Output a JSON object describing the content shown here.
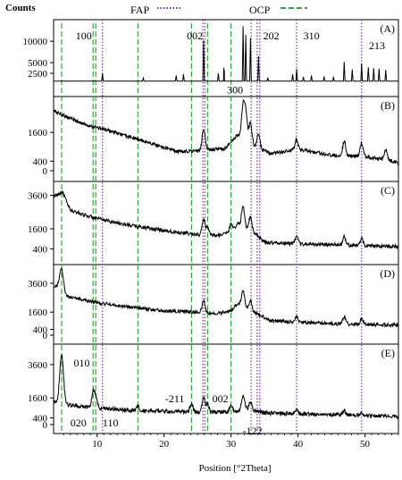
{
  "chart_data": {
    "type": "line",
    "title": "",
    "ylabel": "Counts",
    "xlabel": "Position [°2Theta]",
    "xlim": [
      3.5,
      55
    ],
    "xticks": [
      10,
      20,
      30,
      40,
      50
    ],
    "legend": {
      "placement": "top-center",
      "entries": [
        {
          "label": "FAP",
          "style": "dotted",
          "color": "#7b2fbf"
        },
        {
          "label": "OCP",
          "style": "dashed",
          "color": "#2eaa3a"
        }
      ]
    },
    "reference_lines": {
      "FAP": [
        10.8,
        25.8,
        26.1,
        33.0,
        33.9,
        34.3,
        39.8,
        49.5
      ],
      "OCP": [
        4.7,
        9.4,
        9.8,
        16.1,
        24.1,
        26.5,
        30.0
      ]
    },
    "panels": [
      {
        "label": "(A)",
        "yticks": [
          2500,
          5000,
          10000
        ],
        "ylim": [
          0,
          14000
        ],
        "annotations": [
          {
            "text": "100",
            "x": 8.0,
            "y": 10500
          },
          {
            "text": "002",
            "x": 24.6,
            "y": 10500
          },
          {
            "text": "202",
            "x": 36.0,
            "y": 10500
          },
          {
            "text": "310",
            "x": 42.0,
            "y": 10500
          },
          {
            "text": "213",
            "x": 51.8,
            "y": 8200
          },
          {
            "text": "300",
            "x": 30.6,
            "y": -2200
          }
        ],
        "series": [
          {
            "name": "",
            "color": "#000000",
            "x": [
              10.8,
              16.9,
              21.8,
              22.9,
              25.9,
              28.1,
              28.9,
              29.0,
              31.8,
              32.2,
              32.9,
              34.1,
              35.5,
              39.2,
              39.8,
              40.8,
              42.0,
              43.9,
              45.3,
              46.9,
              48.1,
              49.5,
              50.5,
              51.3,
              52.1,
              53.1
            ],
            "y": [
              2500,
              1400,
              2000,
              2300,
              10200,
              2500,
              3800,
              3000,
              13500,
              11500,
              10800,
              6500,
              1500,
              2300,
              3500,
              1700,
              2000,
              1800,
              1700,
              5200,
              3400,
              4800,
              3900,
              3700,
              3600,
              3300
            ]
          }
        ]
      },
      {
        "label": "(B)",
        "yticks": [
          0,
          400,
          1600
        ],
        "ylim": [
          0,
          2800
        ],
        "baseline": [
          [
            3.5,
            2500
          ],
          [
            8,
            1950
          ],
          [
            12,
            1650
          ],
          [
            18,
            1150
          ],
          [
            22,
            800
          ],
          [
            25,
            820
          ],
          [
            27,
            900
          ],
          [
            29,
            900
          ],
          [
            31,
            1500
          ],
          [
            33,
            1100
          ],
          [
            36,
            700
          ],
          [
            40,
            900
          ],
          [
            45,
            650
          ],
          [
            50,
            600
          ],
          [
            55,
            350
          ]
        ],
        "peaks": [
          [
            25.9,
            900
          ],
          [
            31.8,
            1350
          ],
          [
            32.2,
            1100
          ],
          [
            32.9,
            900
          ],
          [
            34.1,
            550
          ],
          [
            39.8,
            400
          ],
          [
            46.9,
            600
          ],
          [
            49.5,
            550
          ],
          [
            53.1,
            450
          ]
        ]
      },
      {
        "label": "(C)",
        "yticks": [
          400,
          1600,
          3600
        ],
        "ylim": [
          0,
          4000
        ],
        "baseline": [
          [
            3.5,
            3500
          ],
          [
            4.8,
            3850
          ],
          [
            6,
            2700
          ],
          [
            10,
            2200
          ],
          [
            15,
            1800
          ],
          [
            20,
            1500
          ],
          [
            25,
            1250
          ],
          [
            28,
            1200
          ],
          [
            30,
            1400
          ],
          [
            31,
            1900
          ],
          [
            33,
            1500
          ],
          [
            35,
            800
          ],
          [
            40,
            700
          ],
          [
            45,
            650
          ],
          [
            50,
            600
          ],
          [
            55,
            550
          ]
        ],
        "peaks": [
          [
            25.9,
            900
          ],
          [
            26.5,
            500
          ],
          [
            30.0,
            500
          ],
          [
            31.8,
            1200
          ],
          [
            32.9,
            800
          ],
          [
            39.8,
            400
          ],
          [
            46.9,
            500
          ],
          [
            49.5,
            400
          ]
        ]
      },
      {
        "label": "(D)",
        "yticks": [
          0,
          400,
          1600,
          3600
        ],
        "ylim": [
          0,
          4400
        ],
        "baseline": [
          [
            3.5,
            3300
          ],
          [
            4.2,
            3400
          ],
          [
            5.5,
            2700
          ],
          [
            10,
            2250
          ],
          [
            15,
            1950
          ],
          [
            20,
            1700
          ],
          [
            25,
            1600
          ],
          [
            28,
            1500
          ],
          [
            30,
            1700
          ],
          [
            31,
            2200
          ],
          [
            33,
            1700
          ],
          [
            36,
            1000
          ],
          [
            40,
            900
          ],
          [
            45,
            800
          ],
          [
            50,
            750
          ],
          [
            55,
            700
          ]
        ],
        "peaks": [
          [
            4.7,
            1400
          ],
          [
            25.9,
            800
          ],
          [
            31.8,
            1100
          ],
          [
            32.9,
            700
          ],
          [
            39.8,
            400
          ],
          [
            46.9,
            500
          ],
          [
            49.5,
            400
          ]
        ]
      },
      {
        "label": "(E)",
        "yticks": [
          0,
          400,
          1600,
          3600
        ],
        "ylim": [
          0,
          4400
        ],
        "annotations": [
          {
            "text": "010",
            "x": 7.7,
            "y": 3500
          },
          {
            "text": "020",
            "x": 7.2,
            "y": -100
          },
          {
            "text": "110",
            "x": 12.0,
            "y": -100
          },
          {
            "text": "-211",
            "x": 21.6,
            "y": 1350
          },
          {
            "text": "002",
            "x": 28.4,
            "y": 1350
          },
          {
            "text": "-122",
            "x": 33.2,
            "y": -600
          }
        ],
        "baseline": [
          [
            3.5,
            1400
          ],
          [
            5.5,
            1200
          ],
          [
            10,
            1000
          ],
          [
            15,
            850
          ],
          [
            20,
            800
          ],
          [
            25,
            750
          ],
          [
            30,
            750
          ],
          [
            32,
            950
          ],
          [
            35,
            700
          ],
          [
            40,
            650
          ],
          [
            45,
            600
          ],
          [
            50,
            550
          ],
          [
            55,
            500
          ]
        ],
        "peaks": [
          [
            4.7,
            2900
          ],
          [
            9.4,
            900
          ],
          [
            9.8,
            600
          ],
          [
            16.1,
            250
          ],
          [
            24.1,
            550
          ],
          [
            25.9,
            850
          ],
          [
            26.5,
            500
          ],
          [
            30.0,
            350
          ],
          [
            31.8,
            800
          ],
          [
            32.9,
            450
          ],
          [
            39.8,
            200
          ],
          [
            46.9,
            250
          ],
          [
            49.5,
            200
          ]
        ]
      }
    ]
  }
}
